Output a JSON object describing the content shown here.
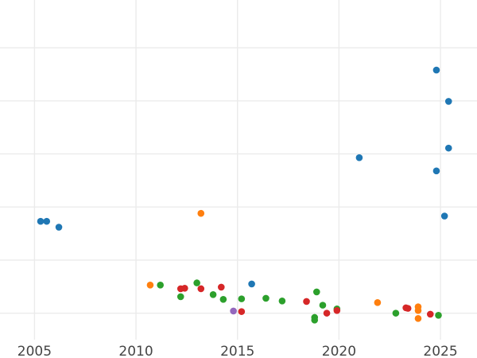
{
  "chart_data": {
    "type": "scatter",
    "title": "",
    "xlabel": "",
    "ylabel": "",
    "xlim": [
      2003.3,
      2026.8
    ],
    "ylim": [
      0,
      6.4
    ],
    "grid": true,
    "legend": "none",
    "x_ticks": [
      2005,
      2010,
      2015,
      2020,
      2025
    ],
    "x_tick_labels": [
      "2005",
      "2010",
      "2015",
      "2020",
      "2025"
    ],
    "y_grid_values": [
      0.5,
      1.5,
      2.5,
      3.5,
      4.5,
      5.5,
      6.5
    ],
    "series": [
      {
        "color": "#1f77b4",
        "points": [
          [
            2005.3,
            2.23
          ],
          [
            2005.6,
            2.23
          ],
          [
            2006.2,
            2.12
          ],
          [
            2015.7,
            1.05
          ],
          [
            2021.0,
            3.43
          ],
          [
            2024.8,
            5.08
          ],
          [
            2025.4,
            4.49
          ],
          [
            2025.4,
            3.61
          ],
          [
            2024.8,
            3.18
          ],
          [
            2025.2,
            2.33
          ]
        ]
      },
      {
        "color": "#ff7f0e",
        "points": [
          [
            2010.7,
            1.03
          ],
          [
            2013.2,
            2.38
          ],
          [
            2021.9,
            0.7
          ],
          [
            2023.9,
            0.62
          ],
          [
            2023.9,
            0.55
          ],
          [
            2023.9,
            0.4
          ]
        ]
      },
      {
        "color": "#2ca02c",
        "points": [
          [
            2011.2,
            1.03
          ],
          [
            2012.2,
            0.81
          ],
          [
            2013.0,
            1.07
          ],
          [
            2013.8,
            0.85
          ],
          [
            2014.3,
            0.76
          ],
          [
            2015.2,
            0.77
          ],
          [
            2016.4,
            0.78
          ],
          [
            2017.2,
            0.73
          ],
          [
            2018.9,
            0.9
          ],
          [
            2019.2,
            0.65
          ],
          [
            2019.9,
            0.58
          ],
          [
            2018.8,
            0.37
          ],
          [
            2018.8,
            0.42
          ],
          [
            2022.8,
            0.5
          ],
          [
            2024.9,
            0.46
          ]
        ]
      },
      {
        "color": "#d62728",
        "points": [
          [
            2012.2,
            0.96
          ],
          [
            2012.4,
            0.97
          ],
          [
            2013.2,
            0.96
          ],
          [
            2014.2,
            0.99
          ],
          [
            2015.2,
            0.53
          ],
          [
            2018.4,
            0.72
          ],
          [
            2019.4,
            0.5
          ],
          [
            2019.9,
            0.55
          ],
          [
            2023.3,
            0.6
          ],
          [
            2023.4,
            0.59
          ],
          [
            2024.5,
            0.48
          ]
        ]
      },
      {
        "color": "#9467bd",
        "points": [
          [
            2014.8,
            0.54
          ]
        ]
      }
    ]
  }
}
